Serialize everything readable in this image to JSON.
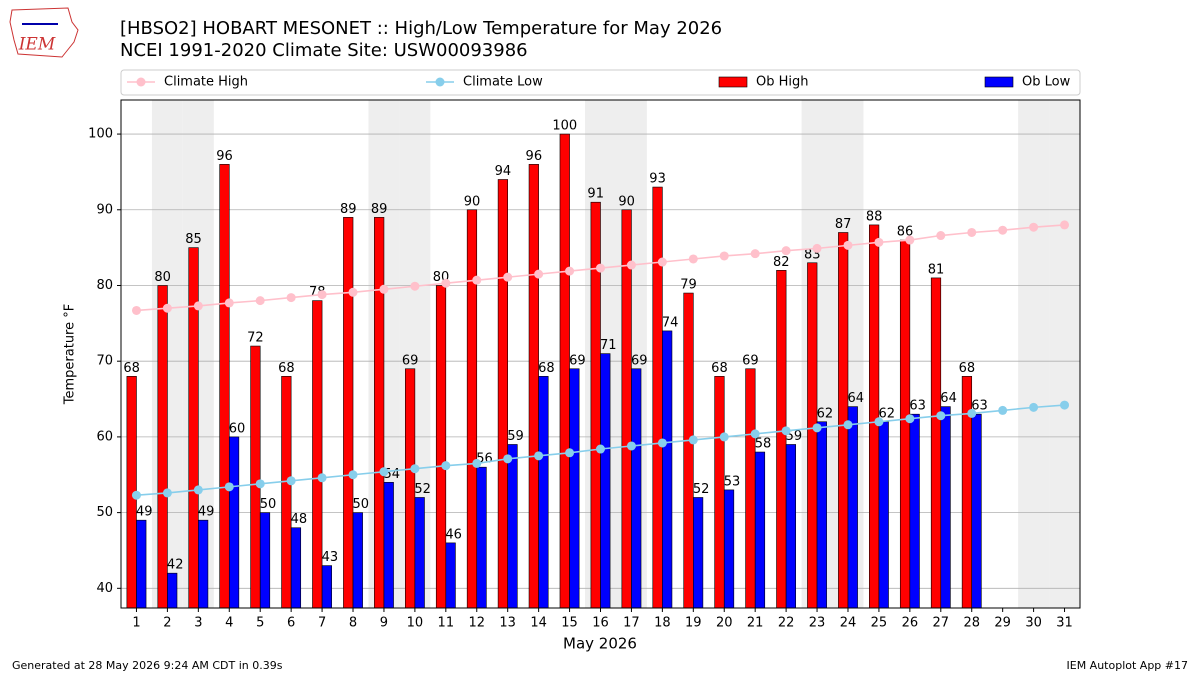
{
  "chart_data": {
    "type": "bar",
    "title": "[HBSO2] HOBART MESONET :: High/Low Temperature for May 2026",
    "subtitle": "NCEI 1991-2020 Climate Site: USW00093986",
    "logo_text": "IEM",
    "y_label": "Temperature °F",
    "x_label": "May 2026",
    "footer_left": "Generated at 28 May 2026 9:24 AM CDT in 0.39s",
    "footer_right": "IEM Autoplot App #17",
    "categories": [
      "1",
      "2",
      "3",
      "4",
      "5",
      "6",
      "7",
      "8",
      "9",
      "10",
      "11",
      "12",
      "13",
      "14",
      "15",
      "16",
      "17",
      "18",
      "19",
      "20",
      "21",
      "22",
      "23",
      "24",
      "25",
      "26",
      "27",
      "28",
      "29",
      "30",
      "31"
    ],
    "weekend_days": [
      "2",
      "3",
      "9",
      "10",
      "16",
      "17",
      "23",
      "24",
      "30",
      "31"
    ],
    "ylim": [
      37.4,
      104.5
    ],
    "yticks": [
      40,
      50,
      60,
      70,
      80,
      90,
      100
    ],
    "grid": true,
    "legend": "top",
    "series": [
      {
        "name": "Climate High",
        "type": "line",
        "color": "#ffc0cb",
        "values": [
          76.7,
          77.0,
          77.3,
          77.7,
          78.0,
          78.4,
          78.8,
          79.1,
          79.5,
          79.9,
          80.3,
          80.7,
          81.1,
          81.5,
          81.9,
          82.3,
          82.7,
          83.1,
          83.5,
          83.9,
          84.2,
          84.6,
          84.9,
          85.3,
          85.7,
          86.0,
          86.6,
          87.0,
          87.3,
          87.7,
          88.0
        ]
      },
      {
        "name": "Climate Low",
        "type": "line",
        "color": "#87ceeb",
        "values": [
          52.3,
          52.6,
          53.0,
          53.4,
          53.8,
          54.2,
          54.6,
          55.0,
          55.4,
          55.8,
          56.2,
          56.5,
          57.1,
          57.5,
          57.9,
          58.4,
          58.8,
          59.2,
          59.6,
          60.0,
          60.4,
          60.8,
          61.2,
          61.6,
          62.0,
          62.4,
          62.8,
          63.1,
          63.5,
          63.9,
          64.2
        ]
      },
      {
        "name": "Ob High",
        "type": "bar",
        "color": "#ff0000",
        "values": [
          68,
          80,
          85,
          96,
          72,
          68,
          78,
          89,
          89,
          69,
          80,
          90,
          94,
          96,
          100,
          91,
          90,
          93,
          79,
          68,
          69,
          82,
          83,
          87,
          88,
          86,
          81,
          68,
          null,
          null,
          null
        ]
      },
      {
        "name": "Ob Low",
        "type": "bar",
        "color": "#0000ff",
        "values": [
          49,
          42,
          49,
          60,
          50,
          48,
          43,
          50,
          54,
          52,
          46,
          56,
          59,
          68,
          69,
          71,
          69,
          74,
          52,
          53,
          58,
          59,
          62,
          64,
          62,
          63,
          64,
          63,
          null,
          null,
          null
        ]
      }
    ]
  }
}
